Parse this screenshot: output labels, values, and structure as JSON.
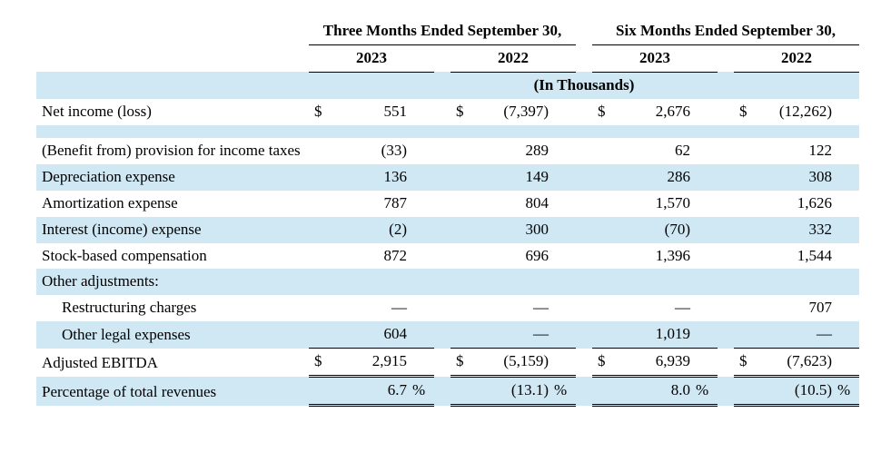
{
  "periods": {
    "three": "Three Months Ended September 30,",
    "six": "Six Months Ended September 30,"
  },
  "years": {
    "y2023": "2023",
    "y2022": "2022"
  },
  "unit_header": "(In Thousands)",
  "labels": {
    "net_income": "Net income (loss)",
    "tax": "(Benefit from) provision for income taxes",
    "dep": "Depreciation expense",
    "amort": "Amortization expense",
    "interest": "Interest (income) expense",
    "sbc": "Stock-based compensation",
    "other_adj": "Other adjustments:",
    "restruct": "Restructuring charges",
    "legal": "Other legal expenses",
    "adj_ebitda": "Adjusted EBITDA",
    "pct_rev": "Percentage of total revenues"
  },
  "currency": "$",
  "percent": "%",
  "em_dash": "—",
  "values": {
    "net_income": {
      "t2023": "551",
      "t2022": "(7,397)",
      "s2023": "2,676",
      "s2022": "(12,262)"
    },
    "tax": {
      "t2023": "(33)",
      "t2022": "289",
      "s2023": "62",
      "s2022": "122"
    },
    "dep": {
      "t2023": "136",
      "t2022": "149",
      "s2023": "286",
      "s2022": "308"
    },
    "amort": {
      "t2023": "787",
      "t2022": "804",
      "s2023": "1,570",
      "s2022": "1,626"
    },
    "interest": {
      "t2023": "(2)",
      "t2022": "300",
      "s2023": "(70)",
      "s2022": "332"
    },
    "sbc": {
      "t2023": "872",
      "t2022": "696",
      "s2023": "1,396",
      "s2022": "1,544"
    },
    "restruct": {
      "t2023": "—",
      "t2022": "—",
      "s2023": "—",
      "s2022": "707"
    },
    "legal": {
      "t2023": "604",
      "t2022": "—",
      "s2023": "1,019",
      "s2022": "—"
    },
    "adj_ebitda": {
      "t2023": "2,915",
      "t2022": "(5,159)",
      "s2023": "6,939",
      "s2022": "(7,623)"
    },
    "pct_rev": {
      "t2023": "6.7",
      "t2022": "(13.1)",
      "s2023": "8.0",
      "s2022": "(10.5)"
    }
  },
  "styling": {
    "stripe_color": "#cfe8f4",
    "text_color": "#000000",
    "font_family": "Times New Roman",
    "row_has_stripe": {
      "unit_header": true,
      "net_income": false,
      "tax": false,
      "dep": true,
      "amort": false,
      "interest": true,
      "sbc": false,
      "other_adj": true,
      "restruct": false,
      "legal": true,
      "adj_ebitda": false,
      "pct_rev": true
    }
  }
}
